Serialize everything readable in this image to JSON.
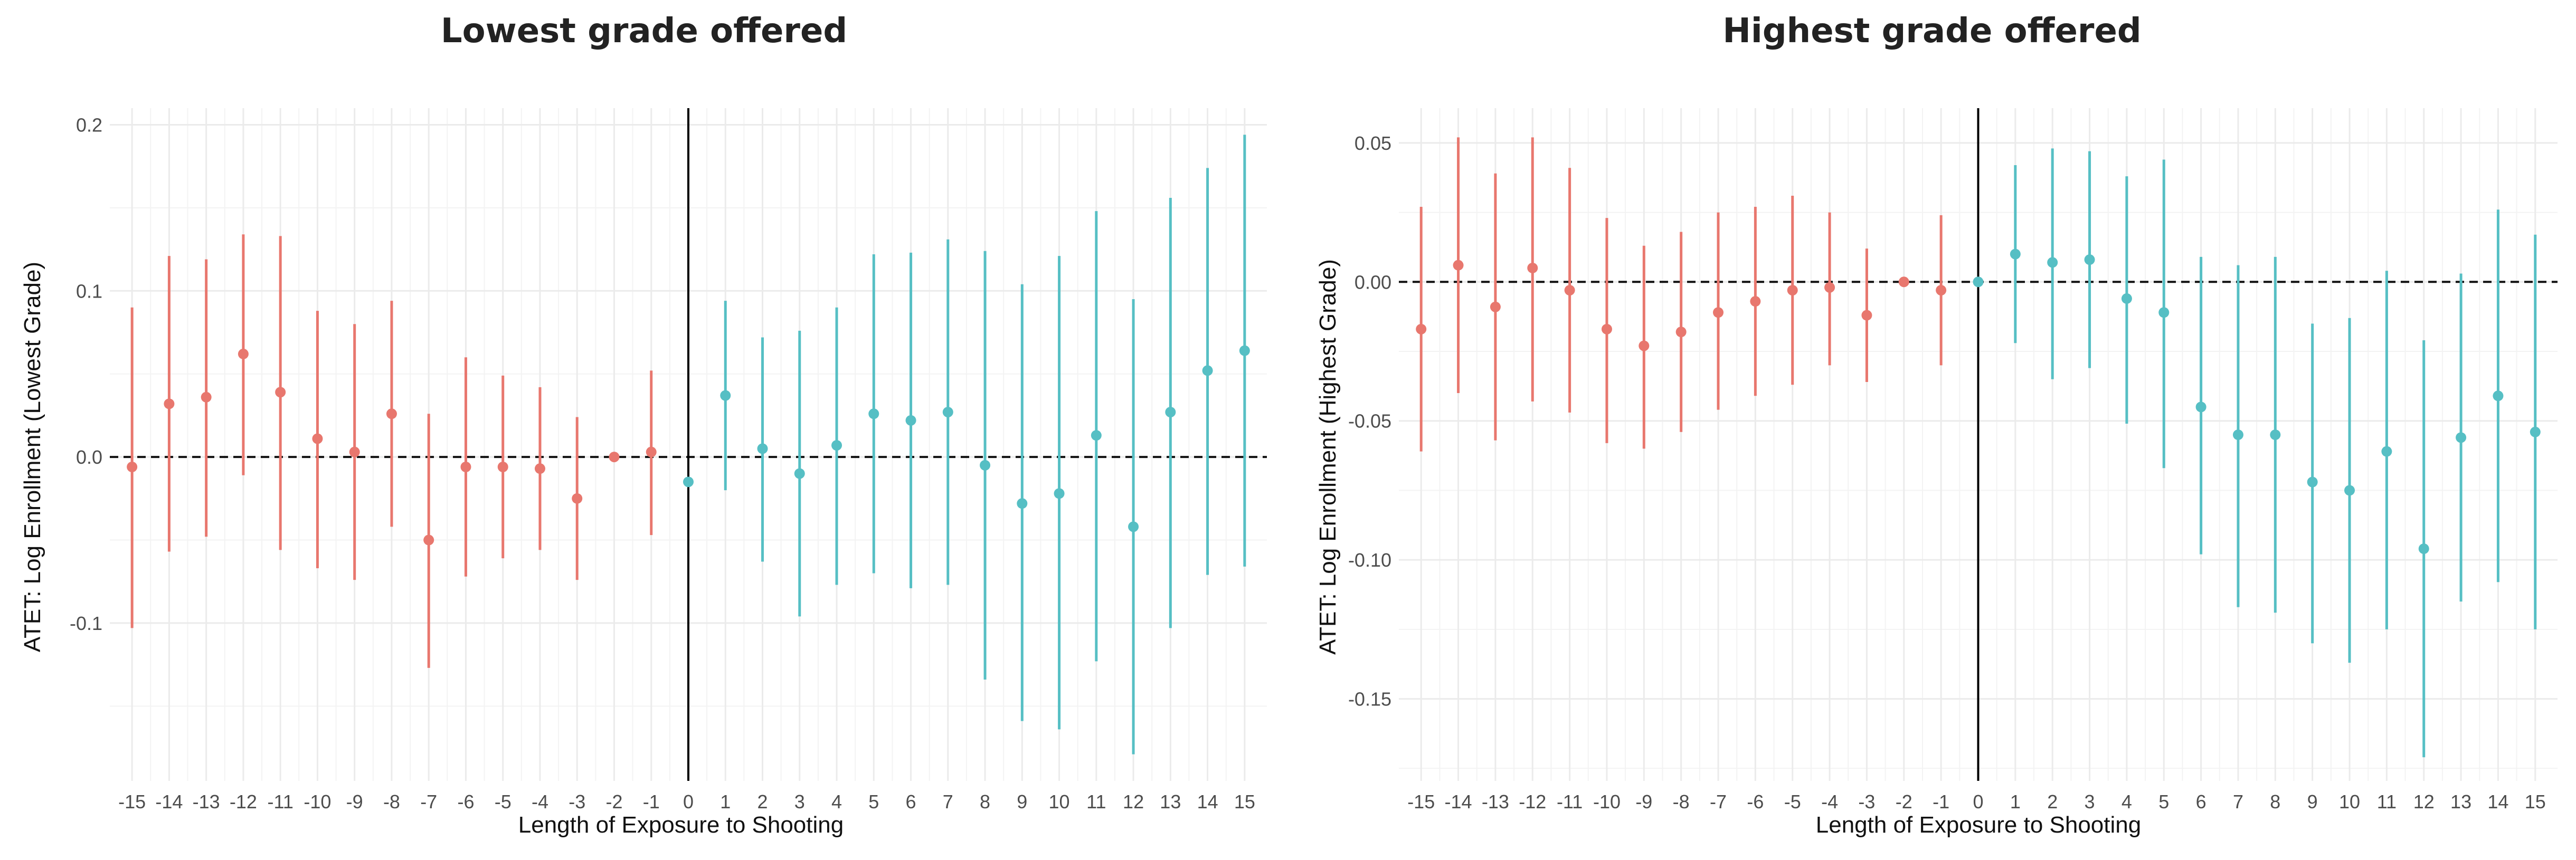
{
  "chart_data": [
    {
      "type": "scatter",
      "title": "Lowest grade offered",
      "xlabel": "Length of Exposure to Shooting",
      "ylabel": "ATET: Log Enrollment (Lowest Grade)",
      "ylim": [
        -0.195,
        0.21
      ],
      "yticks": [
        -0.1,
        0.0,
        0.1,
        0.2
      ],
      "ytick_labels": [
        "-0.1",
        "0.0",
        "0.1",
        "0.2"
      ],
      "x": [
        -15,
        -14,
        -13,
        -12,
        -11,
        -10,
        -9,
        -8,
        -7,
        -6,
        -5,
        -4,
        -3,
        -2,
        -1,
        0,
        1,
        2,
        3,
        4,
        5,
        6,
        7,
        8,
        9,
        10,
        11,
        12,
        13,
        14,
        15
      ],
      "xtick_labels": [
        "-15",
        "-14",
        "-13",
        "-12",
        "-11",
        "-10",
        "-9",
        "-8",
        "-7",
        "-6",
        "-5",
        "-4",
        "-3",
        "-2",
        "-1",
        "0",
        "1",
        "2",
        "3",
        "4",
        "5",
        "6",
        "7",
        "8",
        "9",
        "10",
        "11",
        "12",
        "13",
        "14",
        "15"
      ],
      "estimate": [
        -0.006,
        0.032,
        0.036,
        0.062,
        0.039,
        0.011,
        0.003,
        0.026,
        -0.05,
        -0.006,
        -0.006,
        -0.007,
        -0.025,
        0.0,
        0.003,
        -0.015,
        0.037,
        0.005,
        -0.01,
        0.007,
        0.026,
        0.022,
        0.027,
        -0.005,
        -0.028,
        -0.022,
        0.013,
        -0.042,
        0.027,
        0.052,
        0.064
      ],
      "ci_lower": [
        -0.103,
        -0.057,
        -0.048,
        -0.011,
        -0.056,
        -0.067,
        -0.074,
        -0.042,
        -0.127,
        -0.072,
        -0.061,
        -0.056,
        -0.074,
        0.0,
        -0.047,
        -0.015,
        -0.02,
        -0.063,
        -0.096,
        -0.077,
        -0.07,
        -0.079,
        -0.077,
        -0.134,
        -0.159,
        -0.164,
        -0.123,
        -0.179,
        -0.103,
        -0.071,
        -0.066
      ],
      "ci_upper": [
        0.09,
        0.121,
        0.119,
        0.134,
        0.133,
        0.088,
        0.08,
        0.094,
        0.026,
        0.06,
        0.049,
        0.042,
        0.024,
        0.0,
        0.052,
        -0.015,
        0.094,
        0.072,
        0.076,
        0.09,
        0.122,
        0.123,
        0.131,
        0.124,
        0.104,
        0.121,
        0.148,
        0.095,
        0.156,
        0.174,
        0.194
      ],
      "reference_line": 0.0,
      "event_line_x": 0,
      "pre_color": "#E8776E",
      "post_color": "#56BFC4",
      "grid": true,
      "legend": false
    },
    {
      "type": "scatter",
      "title": "Highest grade offered",
      "xlabel": "Length of Exposure to Shooting",
      "ylabel": "ATET: Log Enrollment (Highest Grade)",
      "ylim": [
        -0.1795,
        0.0625
      ],
      "yticks": [
        -0.15,
        -0.1,
        -0.05,
        0.0,
        0.05
      ],
      "ytick_labels": [
        "-0.15",
        "-0.10",
        "-0.05",
        "0.00",
        "0.05"
      ],
      "x": [
        -15,
        -14,
        -13,
        -12,
        -11,
        -10,
        -9,
        -8,
        -7,
        -6,
        -5,
        -4,
        -3,
        -2,
        -1,
        0,
        1,
        2,
        3,
        4,
        5,
        6,
        7,
        8,
        9,
        10,
        11,
        12,
        13,
        14,
        15
      ],
      "xtick_labels": [
        "-15",
        "-14",
        "-13",
        "-12",
        "-11",
        "-10",
        "-9",
        "-8",
        "-7",
        "-6",
        "-5",
        "-4",
        "-3",
        "-2",
        "-1",
        "0",
        "1",
        "2",
        "3",
        "4",
        "5",
        "6",
        "7",
        "8",
        "9",
        "10",
        "11",
        "12",
        "13",
        "14",
        "15"
      ],
      "estimate": [
        -0.017,
        0.006,
        -0.009,
        0.005,
        -0.003,
        -0.017,
        -0.023,
        -0.018,
        -0.011,
        -0.007,
        -0.003,
        -0.002,
        -0.012,
        0.0,
        -0.003,
        0.0,
        0.01,
        0.007,
        0.008,
        -0.006,
        -0.011,
        -0.045,
        -0.055,
        -0.055,
        -0.072,
        -0.075,
        -0.061,
        -0.096,
        -0.056,
        -0.041,
        -0.054
      ],
      "ci_lower": [
        -0.061,
        -0.04,
        -0.057,
        -0.043,
        -0.047,
        -0.058,
        -0.06,
        -0.054,
        -0.046,
        -0.041,
        -0.037,
        -0.03,
        -0.036,
        0.0,
        -0.03,
        0.0,
        -0.022,
        -0.035,
        -0.031,
        -0.051,
        -0.067,
        -0.098,
        -0.117,
        -0.119,
        -0.13,
        -0.137,
        -0.125,
        -0.171,
        -0.115,
        -0.108,
        -0.125
      ],
      "ci_upper": [
        0.027,
        0.052,
        0.039,
        0.052,
        0.041,
        0.023,
        0.013,
        0.018,
        0.025,
        0.027,
        0.031,
        0.025,
        0.012,
        0.0,
        0.024,
        0.0,
        0.042,
        0.048,
        0.047,
        0.038,
        0.044,
        0.009,
        0.006,
        0.009,
        -0.015,
        -0.013,
        0.004,
        -0.021,
        0.003,
        0.026,
        0.017
      ],
      "reference_line": 0.0,
      "event_line_x": 0,
      "pre_color": "#E8776E",
      "post_color": "#56BFC4",
      "grid": true,
      "legend": false
    }
  ]
}
